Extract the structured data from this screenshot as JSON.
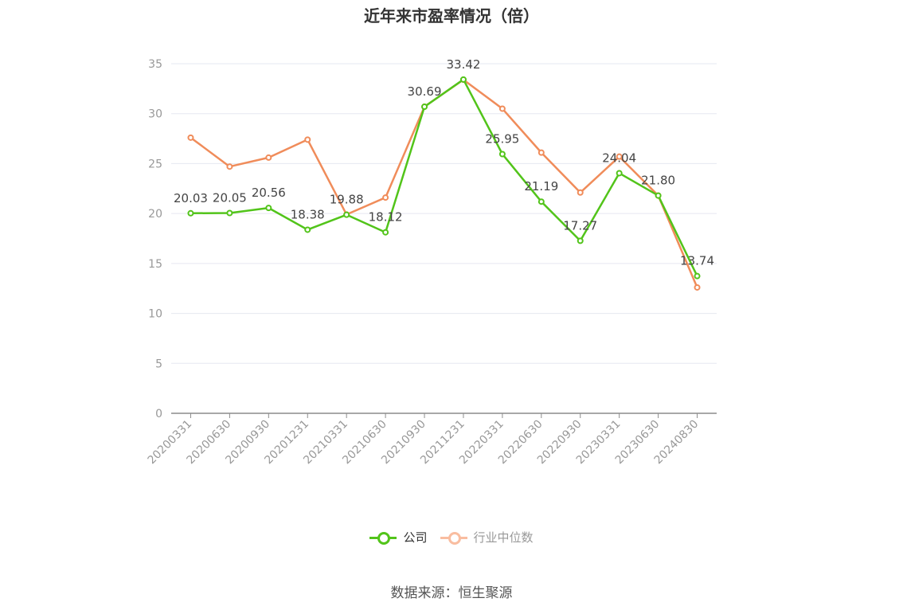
{
  "chart_data": {
    "type": "line",
    "title": "近年来市盈率情况（倍）",
    "categories": [
      "20200331",
      "20200630",
      "20200930",
      "20201231",
      "20210331",
      "20210630",
      "20210930",
      "20211231",
      "20220331",
      "20220630",
      "20220930",
      "20230331",
      "20230630",
      "20240830"
    ],
    "ylim": [
      0,
      35
    ],
    "yticks": [
      0,
      5,
      10,
      15,
      20,
      25,
      30,
      35
    ],
    "grid": true,
    "legend_position": "bottom",
    "series": [
      {
        "name": "公司",
        "color": "#52c41a",
        "show_labels": true,
        "values": [
          20.03,
          20.05,
          20.56,
          18.38,
          19.88,
          18.12,
          30.69,
          33.42,
          25.95,
          21.19,
          17.27,
          24.04,
          21.8,
          13.74
        ]
      },
      {
        "name": "行业中位数",
        "color": "#f08c5a",
        "show_labels": false,
        "values": [
          27.6,
          24.7,
          25.6,
          27.4,
          19.9,
          21.6,
          30.7,
          33.4,
          30.5,
          26.1,
          22.1,
          25.7,
          21.8,
          12.6
        ]
      }
    ]
  },
  "legend": {
    "items": [
      {
        "label": "公司",
        "color": "#52c41a",
        "text_color": "#333333"
      },
      {
        "label": "行业中位数",
        "color": "#f9bda0",
        "text_color": "#999999"
      }
    ]
  },
  "source": "数据来源：恒生聚源"
}
